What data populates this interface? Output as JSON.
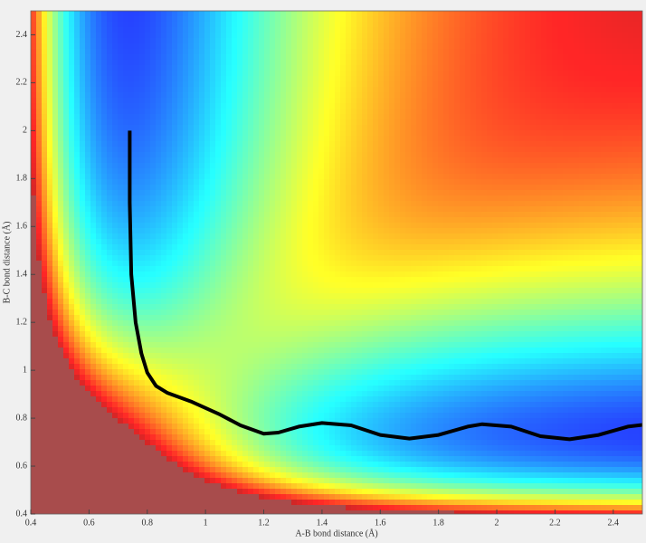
{
  "chart_data": {
    "type": "line",
    "xlabel": "A-B bond distance (Å)",
    "ylabel": "B-C bond distance (Å)",
    "xlim": [
      0.4,
      2.5
    ],
    "ylim": [
      0.4,
      2.5
    ],
    "xticks": [
      0.4,
      0.6,
      0.8,
      1,
      1.2,
      1.4,
      1.6,
      1.8,
      2,
      2.2,
      2.4
    ],
    "yticks": [
      0.4,
      0.6,
      0.8,
      1,
      1.2,
      1.4,
      1.6,
      1.8,
      2,
      2.2,
      2.4
    ],
    "series": [
      {
        "color": "#000000",
        "x": [
          0.74,
          0.74,
          0.745,
          0.76,
          0.78,
          0.8,
          0.83,
          0.87,
          0.95,
          1.05,
          1.12,
          1.2,
          1.25,
          1.32,
          1.4,
          1.5,
          1.6,
          1.7,
          1.8,
          1.9,
          1.95,
          2.05,
          2.15,
          2.25,
          2.35,
          2.45,
          2.5
        ],
        "y": [
          2.0,
          1.7,
          1.4,
          1.2,
          1.07,
          0.99,
          0.935,
          0.905,
          0.87,
          0.815,
          0.77,
          0.735,
          0.74,
          0.765,
          0.78,
          0.77,
          0.73,
          0.715,
          0.73,
          0.765,
          0.775,
          0.765,
          0.725,
          0.712,
          0.73,
          0.765,
          0.772
        ]
      }
    ]
  }
}
